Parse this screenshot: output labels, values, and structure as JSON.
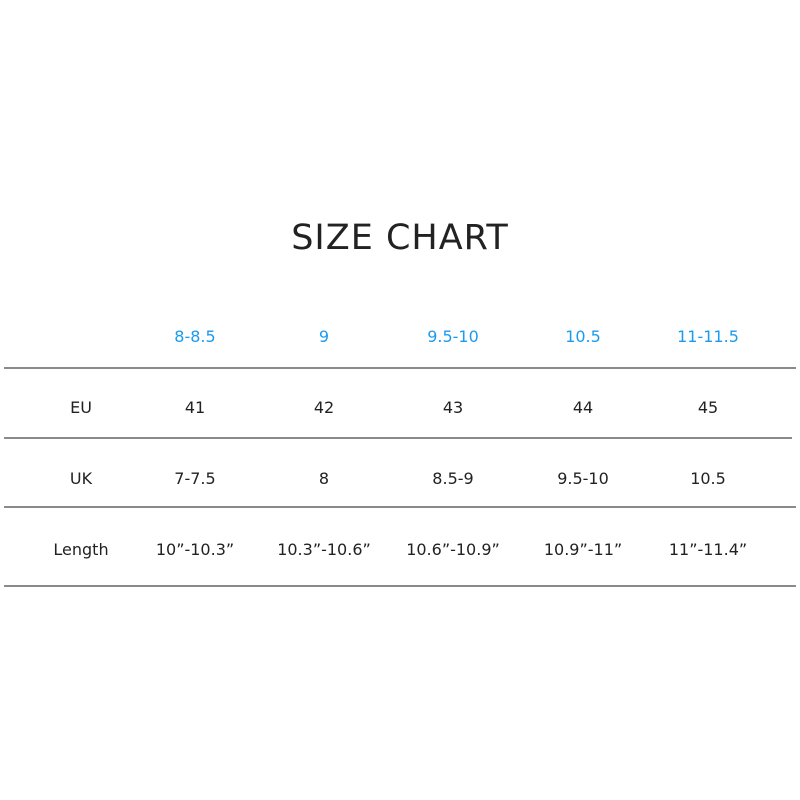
{
  "title": "SIZE CHART",
  "header_color": "#1a9bf0",
  "columns": [
    "8-8.5",
    "9",
    "9.5-10",
    "10.5",
    "11-11.5"
  ],
  "rows": [
    {
      "label": "EU",
      "values": [
        "41",
        "42",
        "43",
        "44",
        "45"
      ]
    },
    {
      "label": "UK",
      "values": [
        "7-7.5",
        "8",
        "8.5-9",
        "9.5-10",
        "10.5"
      ]
    },
    {
      "label": "Length",
      "values": [
        "10”-10.3”",
        "10.3”-10.6”",
        "10.6”-10.9”",
        "10.9”-11”",
        "11”-11.4”"
      ]
    }
  ]
}
